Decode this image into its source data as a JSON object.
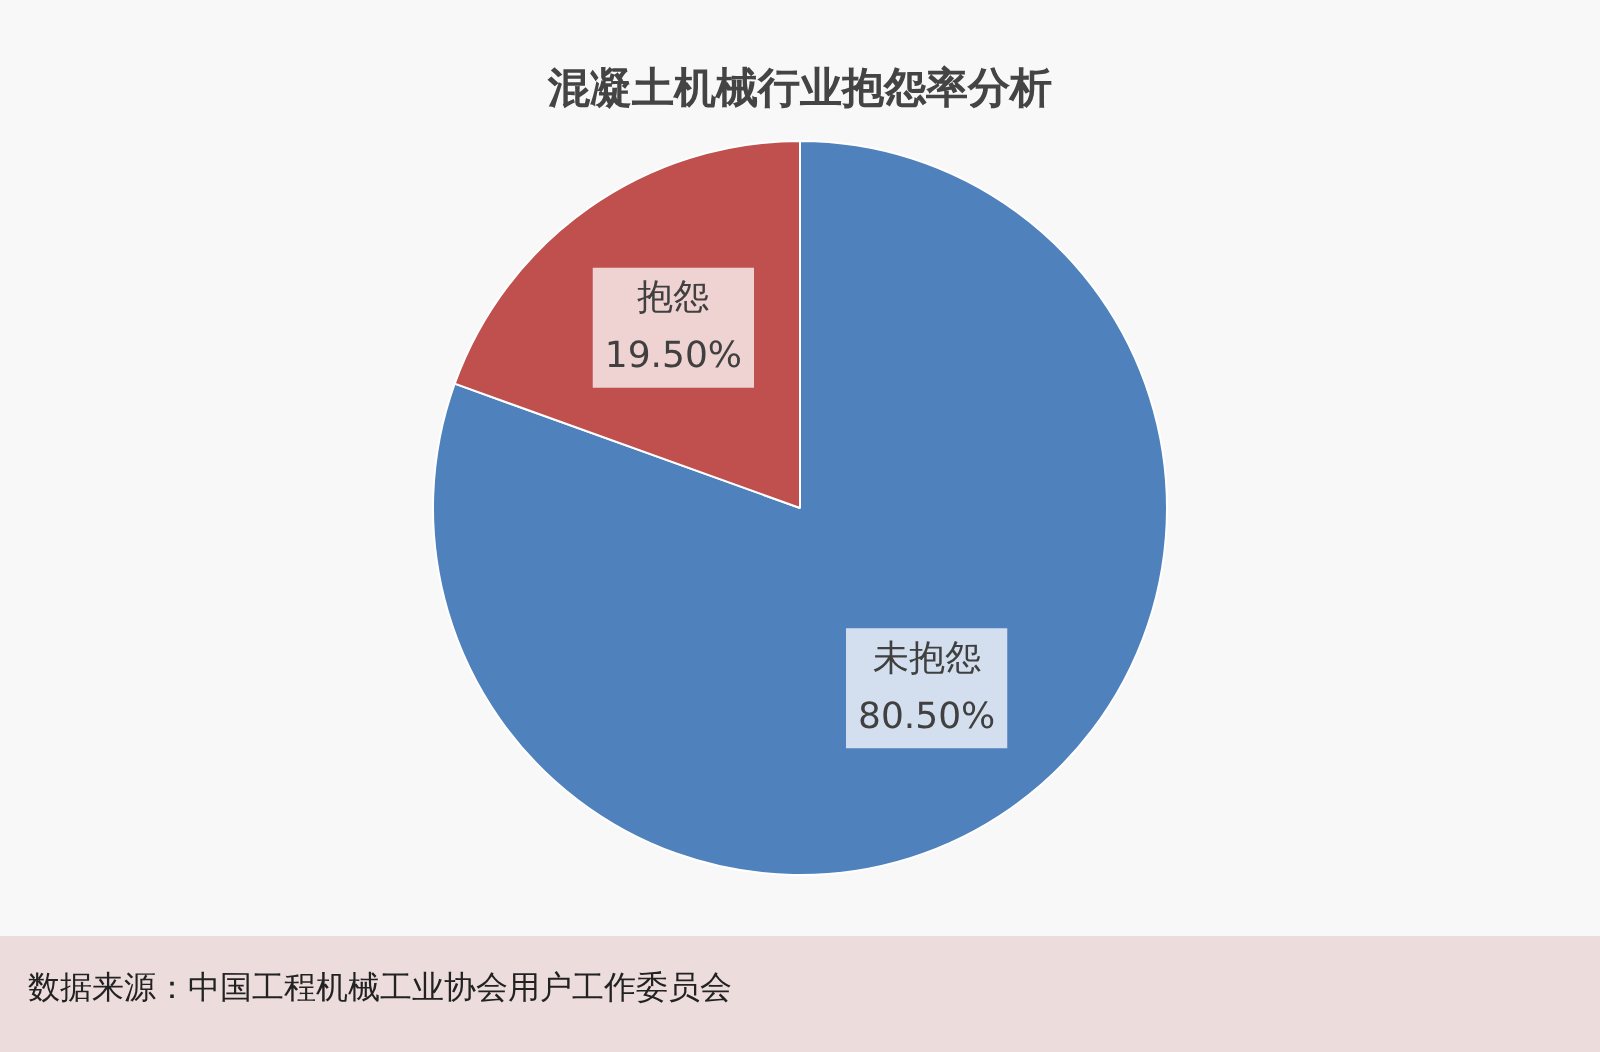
{
  "chart_data": {
    "type": "pie",
    "title": "混凝土机械行业抱怨率分析",
    "categories": [
      "未抱怨",
      "抱怨"
    ],
    "values": [
      80.5,
      19.5
    ],
    "colors": [
      "#4f81bd",
      "#c0504d"
    ],
    "value_labels": [
      "80.50%",
      "19.50%"
    ],
    "legend": false,
    "annotations": [
      "数据来源：中国工程机械工业协会用户工作委员会"
    ]
  }
}
